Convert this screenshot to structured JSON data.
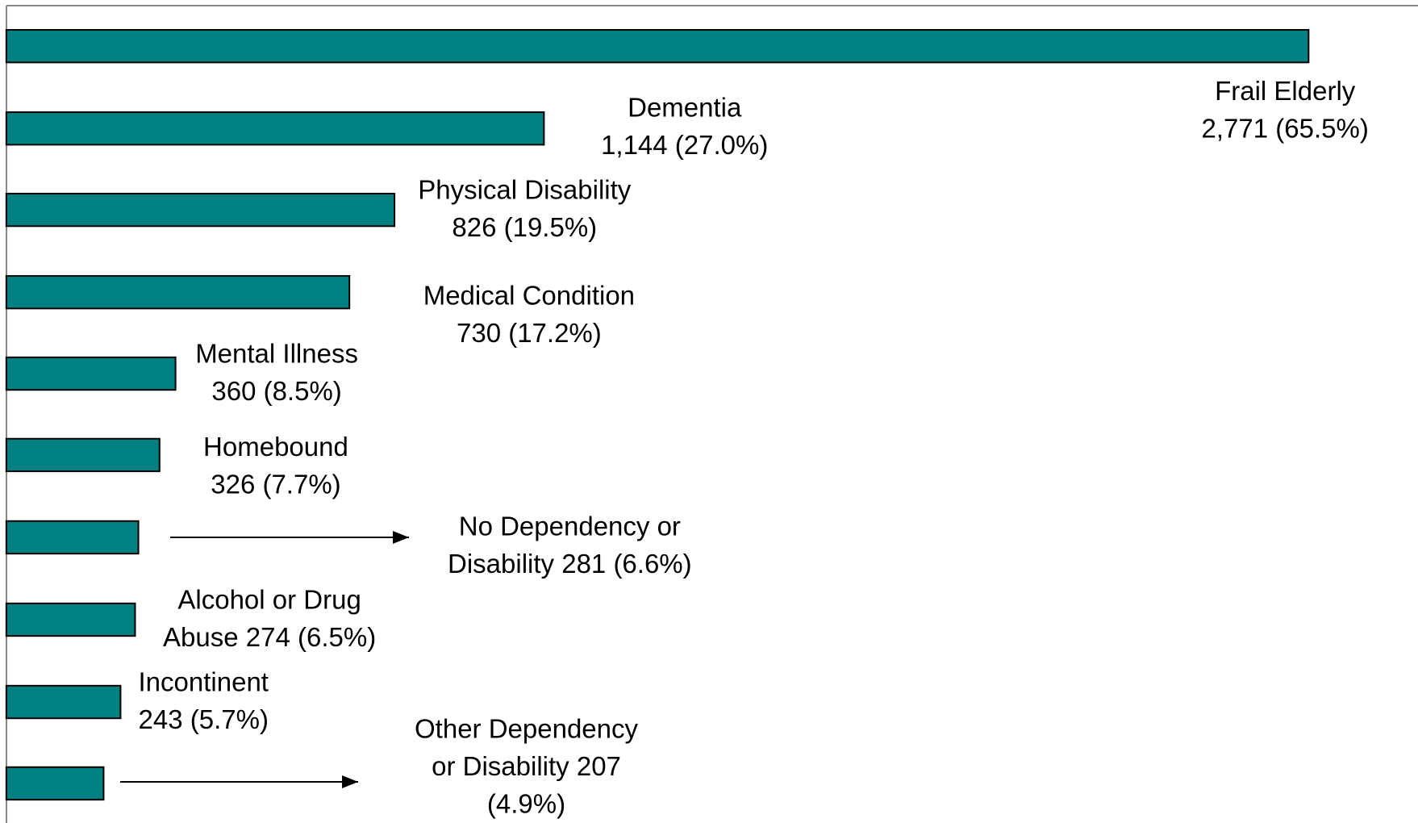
{
  "chart_data": {
    "type": "barh",
    "labels": [
      [
        "Frail Elderly",
        "2,771 (65.5%)"
      ],
      [
        "Dementia",
        "1,144 (27.0%)"
      ],
      [
        "Physical Disability",
        "826 (19.5%)"
      ],
      [
        "Medical Condition",
        "730 (17.2%)"
      ],
      [
        "Mental Illness",
        "360 (8.5%)"
      ],
      [
        "Homebound",
        "326 (7.7%)"
      ],
      [
        "No Dependency or",
        "Disability 281 (6.6%)"
      ],
      [
        "Alcohol or Drug",
        "Abuse  274 (6.5%)"
      ],
      [
        "Incontinent",
        "243 (5.7%)"
      ],
      [
        "Other Dependency",
        "or Disability 207",
        "(4.9%)"
      ]
    ],
    "values": [
      2771,
      1144,
      826,
      730,
      360,
      326,
      281,
      274,
      243,
      207
    ],
    "color": "#008080",
    "xlim": [
      0,
      3000
    ]
  }
}
